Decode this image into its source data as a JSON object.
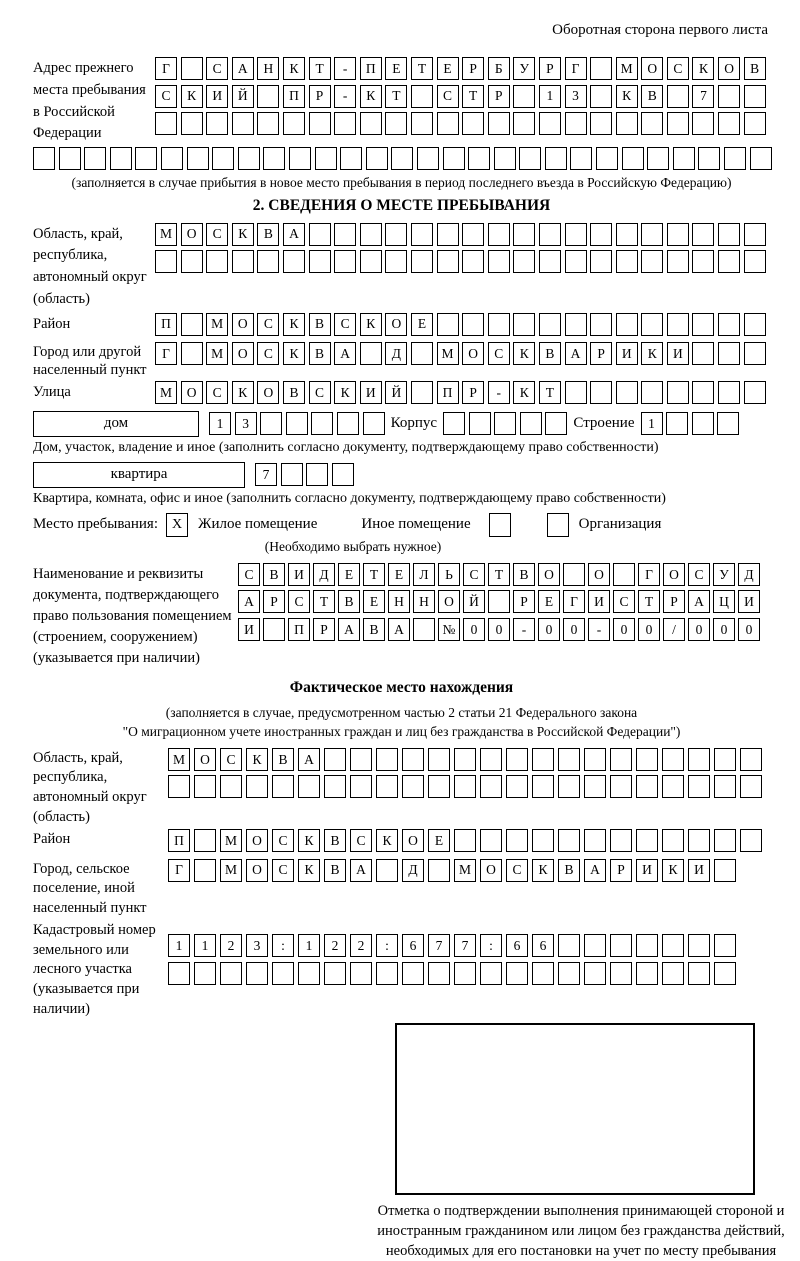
{
  "page": {
    "header_note": "Оборотная сторона первого листа"
  },
  "colors": {
    "ink": "#000000",
    "background": "#ffffff"
  },
  "prev_address": {
    "label": "Адрес прежнего места пребывания в Российской Федерации",
    "rows": [
      "Г_САНКТ-ПЕТЕРБУРГ_МОСКОВ",
      "СКИЙ_ПР-КТ_СТР_13_КВ_7__",
      "________________________"
    ],
    "full_row": "_____________________________",
    "note": "(заполняется в случае прибытия в новое место пребывания в период последнего въезда в Российскую Федерацию)"
  },
  "section2": {
    "title": "2. СВЕДЕНИЯ О МЕСТЕ ПРЕБЫВАНИЯ",
    "oblast": {
      "label": "Область, край, республика, автономный округ (область)",
      "row1": "МОСКВА__________________",
      "row2": "________________________"
    },
    "raion": {
      "label": "Район",
      "row": "П_МОСКВСКОЕ_____________"
    },
    "gorod": {
      "label": "Город или другой населенный пункт",
      "row": "Г_МОСКВА_Д_МОСКВАРИКИ___"
    },
    "ulitsa": {
      "label": "Улица",
      "row": "МОСКОВСКИЙ_ПР-КТ________"
    },
    "house": {
      "box_label": "дом",
      "cells": "13_____",
      "korpus_label": "Корпус",
      "korpus_cells": "_____",
      "stroenie_label": "Строение",
      "stroenie_cells": "1___",
      "caption": "Дом, участок, владение и иное (заполнить согласно документу, подтверждающему право собственности)"
    },
    "apartment": {
      "box_label": "квартира",
      "cells": "7___",
      "caption": "Квартира, комната, офис и иное (заполнить согласно документу, подтверждающему право собственности)"
    },
    "stay_type": {
      "label": "Место пребывания:",
      "options": [
        {
          "label": "Жилое помещение",
          "mark": "X"
        },
        {
          "label": "Иное помещение",
          "mark": ""
        },
        {
          "label": "Организация",
          "mark": ""
        }
      ],
      "note": "(Необходимо выбрать нужное)"
    },
    "document": {
      "label": "Наименование и реквизиты документа, подтверждающего право пользования помещением (строением, сооружением) (указывается при наличии)",
      "rows": [
        "СВИДЕТЕЛЬСТВО_О_ГОСУД",
        "АРСТВЕННОЙ_РЕГИСТРАЦИ",
        "И_ПРАВА_№00-00-00/000"
      ]
    }
  },
  "actual_location": {
    "title": "Фактическое место нахождения",
    "note_line1": "(заполняется в случае, предусмотренном частью 2 статьи 21 Федерального закона",
    "note_line2": "\"О миграционном учете иностранных граждан и лиц без гражданства в Российской Федерации\")",
    "oblast": {
      "label": "Область, край, республика, автономный округ (область)",
      "row1": "МОСКВА_________________",
      "row2": "_______________________"
    },
    "raion": {
      "label": "Район",
      "row": "П_МОСКВСКОЕ____________"
    },
    "gorod": {
      "label": "Город, сельское поселение, иной населенный пункт",
      "row": "Г_МОСКВА_Д_МОСКВАРИКИ_"
    },
    "kadastr": {
      "label": "Кадастровый номер земельного или лесного участка (указывается при наличии)",
      "row1": "1123:122:677:66_______",
      "row2": "______________________"
    },
    "stamp_caption": "Отметка о подтверждении выполнения принимающей стороной и иностранным гражданином или лицом без гражданства действий, необходимых для его постановки на учет по месту пребывания"
  }
}
